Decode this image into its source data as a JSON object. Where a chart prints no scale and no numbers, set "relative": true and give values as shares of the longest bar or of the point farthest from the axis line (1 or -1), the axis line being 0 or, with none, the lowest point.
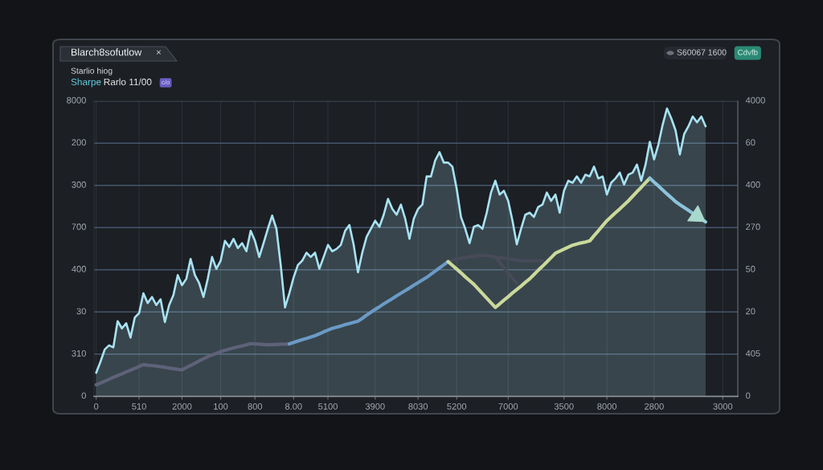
{
  "chart_data": {
    "type": "area",
    "relative": true,
    "title": "Blarch8sofutlow",
    "subtitle": "Starlio hiog",
    "annotations": [
      "×",
      "Sharpe",
      "Rarlo 11/00",
      "c/o",
      "S60067 1600",
      "Cdvfb",
      "0",
      "310",
      "30",
      "400",
      "700",
      "300",
      "200",
      "8000",
      "0",
      "405",
      "20",
      "50",
      "270",
      "400",
      "60",
      "4000"
    ],
    "categories": [
      "0",
      null,
      null,
      null,
      null,
      null,
      null,
      null,
      null,
      null,
      "510",
      null,
      null,
      null,
      null,
      null,
      null,
      null,
      null,
      null,
      "2000",
      null,
      null,
      null,
      null,
      null,
      null,
      null,
      null,
      "100",
      null,
      null,
      null,
      null,
      null,
      null,
      null,
      "800",
      null,
      null,
      null,
      null,
      null,
      null,
      null,
      null,
      "8.00",
      null,
      null,
      null,
      null,
      null,
      null,
      null,
      "5100",
      null,
      null,
      null,
      null,
      null,
      null,
      null,
      null,
      null,
      null,
      "3900",
      null,
      null,
      null,
      null,
      null,
      null,
      null,
      null,
      null,
      "8030",
      null,
      null,
      null,
      null,
      null,
      null,
      null,
      null,
      "5200",
      null,
      null,
      null,
      null,
      null,
      null,
      null,
      null,
      null,
      null,
      null,
      "7000",
      null,
      null,
      null,
      null,
      null,
      null,
      null,
      null,
      null,
      null,
      null,
      null,
      "3500",
      null,
      null,
      null,
      null,
      null,
      null,
      null,
      null,
      null,
      "8000",
      null,
      null,
      null,
      null,
      null,
      null,
      null,
      null,
      null,
      null,
      "2800",
      null,
      null,
      null,
      null,
      null,
      null,
      null,
      null,
      null,
      null,
      null,
      null,
      null,
      null,
      null,
      "3000",
      null,
      null,
      null
    ],
    "series": [
      {
        "color": "#a8e2f2",
        "values": [
          0.082,
          0.12,
          0.163,
          0.177,
          0.17,
          0.261,
          0.236,
          0.254,
          0.204,
          0.274,
          0.289,
          0.358,
          0.324,
          0.345,
          0.317,
          0.337,
          0.258,
          0.317,
          0.352,
          0.421,
          0.386,
          0.408,
          0.477,
          0.421,
          0.393,
          0.345,
          0.408,
          0.484,
          0.443,
          0.471,
          0.54,
          0.519,
          0.547,
          0.515,
          0.532,
          0.504,
          0.575,
          0.54,
          0.484,
          0.532,
          0.582,
          0.628,
          0.582,
          0.456,
          0.309,
          0.358,
          0.413,
          0.456,
          0.471,
          0.499,
          0.484,
          0.499,
          0.443,
          0.484,
          0.526,
          0.504,
          0.512,
          0.526,
          0.575,
          0.595,
          0.526,
          0.431,
          0.499,
          0.554,
          0.582,
          0.61,
          0.589,
          0.631,
          0.686,
          0.651,
          0.631,
          0.666,
          0.617,
          0.547,
          0.617,
          0.651,
          0.666,
          0.764,
          0.764,
          0.82,
          0.848,
          0.812,
          0.812,
          0.798,
          0.721,
          0.623,
          0.582,
          0.532,
          0.589,
          0.595,
          0.582,
          0.638,
          0.708,
          0.749,
          0.701,
          0.714,
          0.679,
          0.61,
          0.528,
          0.582,
          0.631,
          0.638,
          0.623,
          0.658,
          0.666,
          0.708,
          0.679,
          0.701,
          0.638,
          0.714,
          0.749,
          0.742,
          0.764,
          0.742,
          0.77,
          0.764,
          0.798,
          0.757,
          0.764,
          0.701,
          0.742,
          0.757,
          0.777,
          0.736,
          0.77,
          0.777,
          0.805,
          0.749,
          0.805,
          0.884,
          0.823,
          0.875,
          0.944,
          1,
          0.966,
          0.924,
          0.84,
          0.911,
          0.938,
          0.972,
          0.952,
          0.972,
          0.938,
          null,
          null,
          null,
          null,
          null,
          null,
          null
        ]
      },
      {
        "type": "line",
        "color": "#474a58",
        "values": [
          null,
          null,
          null,
          null,
          null,
          null,
          null,
          null,
          null,
          null,
          null,
          null,
          null,
          null,
          null,
          null,
          null,
          null,
          null,
          null,
          null,
          null,
          null,
          null,
          null,
          null,
          null,
          null,
          null,
          null,
          null,
          null,
          null,
          null,
          null,
          null,
          null,
          null,
          null,
          null,
          null,
          null,
          null,
          null,
          null,
          null,
          null,
          null,
          null,
          null,
          null,
          null,
          null,
          null,
          null,
          null,
          null,
          null,
          null,
          null,
          null,
          null,
          null,
          null,
          null,
          null,
          null,
          null,
          null,
          null,
          null,
          null,
          null,
          null,
          null,
          null,
          null,
          null,
          null,
          null,
          null,
          null,
          0.468,
          0.473,
          0.477,
          0.479,
          0.482,
          0.484,
          0.486,
          0.489,
          0.491,
          0.489,
          0.486,
          0.484,
          0.466,
          0.447,
          0.429,
          0.411,
          0.393,
          null,
          null,
          null,
          null,
          null,
          null,
          null,
          null,
          null,
          null,
          null,
          null,
          null,
          null,
          null,
          null,
          null,
          null,
          null,
          null,
          null,
          null,
          null,
          null,
          null,
          null,
          null,
          null,
          null,
          null,
          null,
          null,
          null,
          null,
          null,
          null,
          null,
          null,
          null,
          null,
          null,
          null,
          null,
          null,
          null,
          null,
          null,
          null,
          null,
          null,
          null
        ]
      },
      {
        "type": "line",
        "color": "#474a58",
        "values": [
          null,
          null,
          null,
          null,
          null,
          null,
          null,
          null,
          null,
          null,
          null,
          null,
          null,
          null,
          null,
          null,
          null,
          null,
          null,
          null,
          null,
          null,
          null,
          null,
          null,
          null,
          null,
          null,
          null,
          null,
          null,
          null,
          null,
          null,
          null,
          null,
          null,
          null,
          null,
          null,
          null,
          null,
          null,
          null,
          null,
          null,
          null,
          null,
          null,
          null,
          null,
          null,
          null,
          null,
          null,
          null,
          null,
          null,
          null,
          null,
          null,
          null,
          null,
          null,
          null,
          null,
          null,
          null,
          null,
          null,
          null,
          null,
          null,
          null,
          null,
          null,
          null,
          null,
          null,
          null,
          null,
          null,
          null,
          null,
          null,
          null,
          null,
          null,
          null,
          null,
          null,
          null,
          null,
          0.484,
          0.482,
          0.48,
          0.477,
          0.475,
          0.473,
          0.471,
          0.471,
          0.471,
          0.471,
          0.471,
          0.471,
          null,
          null,
          null,
          null,
          null,
          null,
          null,
          null,
          null,
          null,
          null,
          null,
          null,
          null,
          null,
          null,
          null,
          null,
          null,
          null,
          null,
          null,
          null,
          null,
          null,
          null,
          null,
          null,
          null,
          null,
          null,
          null,
          null,
          null,
          null,
          null,
          null,
          null,
          null,
          null,
          null,
          null,
          null,
          null,
          null
        ]
      },
      {
        "type": "line",
        "color": "#5e6279",
        "values": [
          0.04,
          0.046,
          0.053,
          0.059,
          0.066,
          0.072,
          0.078,
          0.085,
          0.091,
          0.097,
          0.104,
          0.11,
          0.108,
          0.107,
          0.105,
          0.103,
          0.101,
          0.098,
          0.096,
          0.094,
          0.092,
          0.1,
          0.107,
          0.115,
          0.123,
          0.13,
          0.138,
          0.144,
          0.149,
          0.155,
          0.16,
          0.164,
          0.168,
          0.172,
          0.175,
          0.179,
          0.183,
          0.182,
          0.181,
          0.18,
          0.179,
          0.18,
          0.18,
          0.181,
          0.181,
          0.182,
          null,
          null,
          null,
          null,
          null,
          null,
          null,
          null,
          null,
          null,
          null,
          null,
          null,
          null,
          null,
          null,
          null,
          null,
          null,
          null,
          null,
          null,
          null,
          null,
          null,
          null,
          null,
          null,
          null,
          null,
          null,
          null,
          null,
          null,
          null,
          null,
          null,
          null,
          null,
          null,
          null,
          null,
          null,
          null,
          null,
          null,
          null,
          null,
          null,
          null,
          null,
          null,
          null,
          null,
          null,
          null,
          null,
          null,
          null,
          null,
          null,
          null,
          null,
          null,
          null,
          null,
          null,
          null,
          null,
          null,
          null,
          null,
          null,
          null,
          null,
          null,
          null,
          null,
          null,
          null,
          null,
          null,
          null,
          null,
          null,
          null,
          null,
          null,
          null,
          null,
          null,
          null,
          null,
          null,
          null,
          null,
          null,
          null,
          null,
          null,
          null,
          null,
          null,
          null
        ]
      },
      {
        "type": "line",
        "color": "#6b9ac6",
        "values": [
          null,
          null,
          null,
          null,
          null,
          null,
          null,
          null,
          null,
          null,
          null,
          null,
          null,
          null,
          null,
          null,
          null,
          null,
          null,
          null,
          null,
          null,
          null,
          null,
          null,
          null,
          null,
          null,
          null,
          null,
          null,
          null,
          null,
          null,
          null,
          null,
          null,
          null,
          null,
          null,
          null,
          null,
          null,
          null,
          null,
          0.182,
          0.187,
          0.192,
          0.197,
          0.201,
          0.206,
          0.211,
          0.217,
          0.224,
          0.23,
          0.236,
          0.24,
          0.244,
          0.249,
          0.253,
          0.257,
          0.261,
          0.271,
          0.282,
          0.292,
          0.302,
          0.311,
          0.321,
          0.33,
          0.339,
          0.349,
          0.358,
          0.367,
          0.376,
          0.386,
          0.395,
          0.404,
          0.413,
          0.424,
          0.435,
          0.446,
          0.457,
          0.468,
          null,
          null,
          null,
          null,
          null,
          null,
          null,
          null,
          null,
          null,
          null,
          null,
          null,
          null,
          null,
          null,
          null,
          null,
          null,
          null,
          null,
          null,
          null,
          null,
          null,
          null,
          null,
          null,
          null,
          null,
          null,
          null,
          null,
          null,
          null,
          null,
          null,
          null,
          null,
          null,
          null,
          null,
          null,
          null,
          null,
          null,
          null,
          null,
          null,
          null,
          null,
          null,
          null,
          null,
          null,
          null,
          null,
          null,
          null,
          null,
          null,
          null,
          null,
          null,
          null,
          null,
          null
        ]
      },
      {
        "type": "line",
        "color": "#cbd99b",
        "values": [
          null,
          null,
          null,
          null,
          null,
          null,
          null,
          null,
          null,
          null,
          null,
          null,
          null,
          null,
          null,
          null,
          null,
          null,
          null,
          null,
          null,
          null,
          null,
          null,
          null,
          null,
          null,
          null,
          null,
          null,
          null,
          null,
          null,
          null,
          null,
          null,
          null,
          null,
          null,
          null,
          null,
          null,
          null,
          null,
          null,
          null,
          null,
          null,
          null,
          null,
          null,
          null,
          null,
          null,
          null,
          null,
          null,
          null,
          null,
          null,
          null,
          null,
          null,
          null,
          null,
          null,
          null,
          null,
          null,
          null,
          null,
          null,
          null,
          null,
          null,
          null,
          null,
          null,
          null,
          null,
          null,
          null,
          0.468,
          0.455,
          0.442,
          0.429,
          0.415,
          0.402,
          0.389,
          0.373,
          0.357,
          0.341,
          0.325,
          0.309,
          0.321,
          0.334,
          0.346,
          0.359,
          0.371,
          0.383,
          0.396,
          0.408,
          0.423,
          0.438,
          0.452,
          0.467,
          0.482,
          0.497,
          0.504,
          0.511,
          0.518,
          0.525,
          0.529,
          0.533,
          0.536,
          0.54,
          0.558,
          0.575,
          0.593,
          0.61,
          0.624,
          0.638,
          0.651,
          0.665,
          0.679,
          0.695,
          0.711,
          0.726,
          0.742,
          0.758,
          null,
          null,
          null,
          null,
          null,
          null,
          null,
          null,
          null,
          null,
          null,
          null,
          null,
          null,
          null,
          null,
          null,
          null,
          null,
          null
        ]
      },
      {
        "type": "line",
        "color": "#8cc3dc",
        "values": [
          null,
          null,
          null,
          null,
          null,
          null,
          null,
          null,
          null,
          null,
          null,
          null,
          null,
          null,
          null,
          null,
          null,
          null,
          null,
          null,
          null,
          null,
          null,
          null,
          null,
          null,
          null,
          null,
          null,
          null,
          null,
          null,
          null,
          null,
          null,
          null,
          null,
          null,
          null,
          null,
          null,
          null,
          null,
          null,
          null,
          null,
          null,
          null,
          null,
          null,
          null,
          null,
          null,
          null,
          null,
          null,
          null,
          null,
          null,
          null,
          null,
          null,
          null,
          null,
          null,
          null,
          null,
          null,
          null,
          null,
          null,
          null,
          null,
          null,
          null,
          null,
          null,
          null,
          null,
          null,
          null,
          null,
          null,
          null,
          null,
          null,
          null,
          null,
          null,
          null,
          null,
          null,
          null,
          null,
          null,
          null,
          null,
          null,
          null,
          null,
          null,
          null,
          null,
          null,
          null,
          null,
          null,
          null,
          null,
          null,
          null,
          null,
          null,
          null,
          null,
          null,
          null,
          null,
          null,
          null,
          null,
          null,
          null,
          null,
          null,
          null,
          null,
          null,
          null,
          0.758,
          0.744,
          0.731,
          0.717,
          0.703,
          0.69,
          0.676,
          0.666,
          0.656,
          0.646,
          0.636,
          0.626,
          0.616,
          0.606,
          null,
          null,
          null,
          null,
          null,
          null,
          null
        ]
      }
    ],
    "grid": true
  }
}
